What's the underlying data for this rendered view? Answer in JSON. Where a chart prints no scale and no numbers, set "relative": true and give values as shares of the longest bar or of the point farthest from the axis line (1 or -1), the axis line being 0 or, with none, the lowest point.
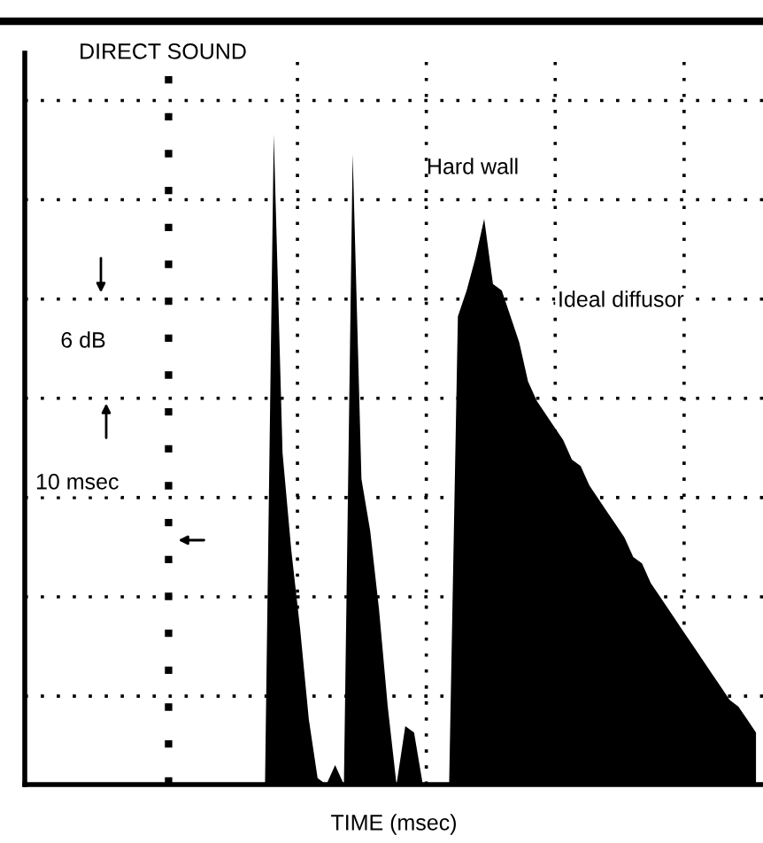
{
  "chart_data": {
    "type": "area",
    "relative": true,
    "xlabel": "TIME (msec)",
    "color": "#000000",
    "grid": true,
    "annotations": [
      "DIRECT SOUND",
      "Hard wall",
      "Ideal diffusor",
      "6 dB",
      "10 msec"
    ],
    "categories": [
      null,
      null,
      null,
      null,
      null,
      null,
      null,
      null,
      null,
      null,
      null,
      null,
      null,
      null,
      null,
      null,
      null,
      null,
      null,
      null,
      null,
      null,
      null,
      null,
      null,
      null,
      null,
      null,
      null,
      null,
      null,
      null,
      null,
      null,
      null,
      null,
      null,
      null,
      null,
      null,
      null,
      null,
      null,
      null,
      null,
      null,
      null,
      null,
      null,
      null,
      null,
      null,
      null,
      null,
      null,
      null,
      null,
      null,
      null,
      null,
      null,
      null,
      null,
      null,
      null,
      null,
      null,
      null,
      null,
      null,
      null,
      null,
      null,
      null,
      null,
      null,
      null,
      null,
      null,
      null,
      null,
      null,
      null,
      null
    ],
    "values": [
      0,
      0,
      0,
      0,
      0,
      0,
      0,
      0,
      0,
      0,
      0,
      0,
      0,
      0,
      0,
      0,
      0,
      0,
      0,
      0,
      0,
      0,
      0,
      0,
      0,
      0,
      0,
      0,
      1.0,
      0.51,
      0.36,
      0.24,
      0.1,
      0.01,
      0,
      0.03,
      0,
      0.97,
      0.47,
      0.39,
      0.27,
      0.12,
      0,
      0.09,
      0.08,
      0,
      0,
      0,
      0,
      0.72,
      0.76,
      0.81,
      0.87,
      0.77,
      0.76,
      0.72,
      0.68,
      0.62,
      0.59,
      0.57,
      0.55,
      0.53,
      0.5,
      0.49,
      0.46,
      0.44,
      0.42,
      0.4,
      0.38,
      0.35,
      0.34,
      0.31,
      0.29,
      0.27,
      0.25,
      0.23,
      0.21,
      0.19,
      0.17,
      0.15,
      0.13,
      0.12,
      0.1,
      0.08
    ]
  }
}
